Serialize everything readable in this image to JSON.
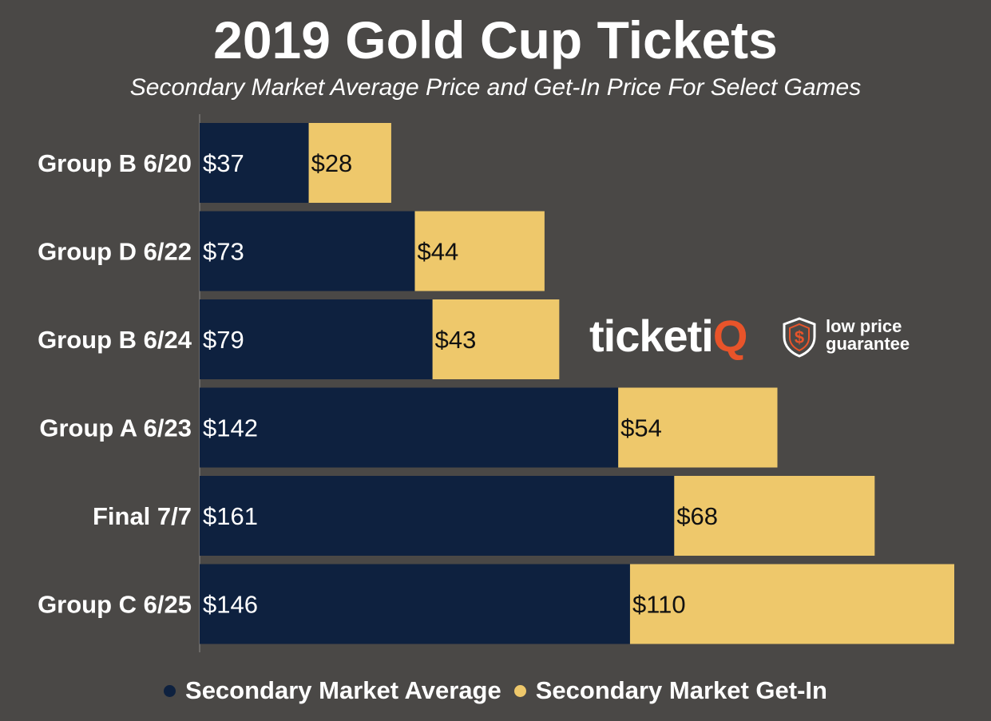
{
  "colors": {
    "background": "#4a4846",
    "average": "#0e213f",
    "get_in": "#eec86b",
    "brand_accent": "#e8542a"
  },
  "brand": {
    "wordmark_main": "ticketi",
    "wordmark_accent": "Q",
    "tagline_line1": "low price",
    "tagline_line2": "guarantee",
    "icon": "dollar-shield-icon"
  },
  "chart_data": {
    "type": "bar",
    "orientation": "horizontal",
    "stacked": true,
    "title": "2019 Gold Cup Tickets",
    "subtitle": "Secondary Market Average Price and Get-In Price For Select Games",
    "categories": [
      "Group B 6/20",
      "Group D 6/22",
      "Group B 6/24",
      "Group A 6/23",
      "Final 7/7",
      "Group C 6/25"
    ],
    "series": [
      {
        "name": "Secondary Market Average",
        "values": [
          37,
          73,
          79,
          142,
          161,
          146
        ],
        "labels": [
          "$37",
          "$73",
          "$79",
          "$142",
          "$161",
          "$146"
        ]
      },
      {
        "name": "Secondary Market Get-In",
        "values": [
          28,
          44,
          43,
          54,
          68,
          110
        ],
        "labels": [
          "$28",
          "$44",
          "$43",
          "$54",
          "$68",
          "$110"
        ]
      }
    ],
    "xlim": [
      0,
      256
    ],
    "grid": false,
    "legend_position": "bottom"
  }
}
